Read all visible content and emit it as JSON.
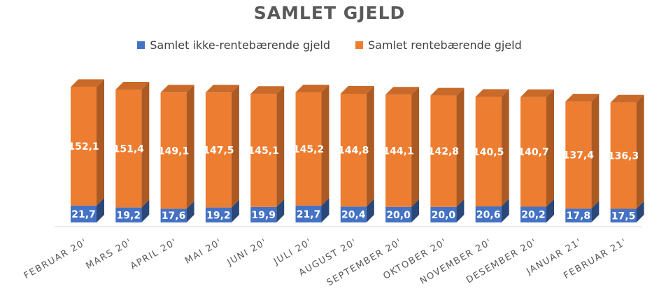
{
  "chart_data": {
    "type": "bar",
    "stacked": true,
    "three_d": true,
    "title": "SAMLET GJELD",
    "categories": [
      "FEBRUAR 20'",
      "MARS 20'",
      "APRIL 20'",
      "MAI 20'",
      "JUNI 20'",
      "JULI 20'",
      "AUGUST 20'",
      "SEPTEMBER 20'",
      "OKTOBER 20'",
      "NOVEMBER 20'",
      "DESEMBER 20'",
      "JANUAR 21'",
      "FEBRUAR 21'"
    ],
    "series": [
      {
        "name": "Samlet ikke-rentebærende gjeld",
        "color": "#4472C4",
        "values": [
          21.7,
          19.2,
          17.6,
          19.2,
          19.9,
          21.7,
          20.4,
          20.0,
          20.0,
          20.6,
          20.2,
          17.8,
          17.5
        ],
        "labels": [
          "21,7",
          "19,2",
          "17,6",
          "19,2",
          "19,9",
          "21,7",
          "20,4",
          "20,0",
          "20,0",
          "20,6",
          "20,2",
          "17,8",
          "17,5"
        ]
      },
      {
        "name": "Samlet rentebærende gjeld",
        "color": "#ED7D31",
        "values": [
          152.1,
          151.4,
          149.1,
          147.5,
          145.1,
          145.2,
          144.8,
          144.1,
          142.8,
          140.5,
          140.7,
          137.4,
          136.3
        ],
        "labels": [
          "152,1",
          "151,4",
          "149,1",
          "147,5",
          "145,1",
          "145,2",
          "144,8",
          "144,1",
          "142,8",
          "140,5",
          "140,7",
          "137,4",
          "136,3"
        ]
      }
    ],
    "legend_position": "top",
    "grid": false
  }
}
